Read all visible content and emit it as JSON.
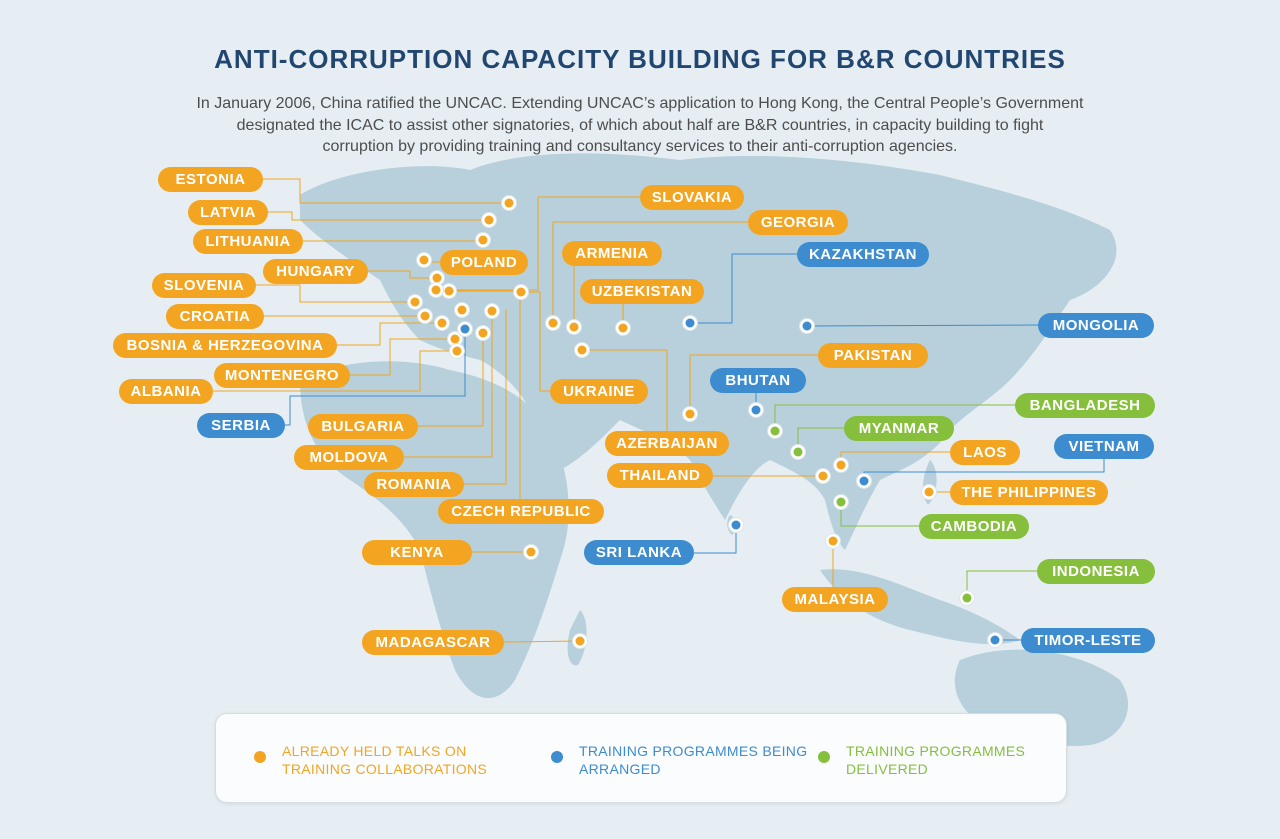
{
  "title": "ANTI-CORRUPTION CAPACITY BUILDING FOR B&R COUNTRIES",
  "intro_lines": [
    "In January 2006, China ratified the UNCAC. Extending UNCAC’s application to Hong Kong, the Central People’s Government",
    "designated the ICAC to assist other signatories, of which about half are B&R countries, in capacity building to fight",
    "corruption by providing training and consultancy services to their anti-corruption agencies."
  ],
  "colors": {
    "talks_held": "#f3a521",
    "being_arranged": "#3d8ccf",
    "delivered": "#86bf3c",
    "title": "#21466f",
    "land": "#b7d0dc",
    "sea": "#e6eef3"
  },
  "legend": [
    {
      "status": "talks_held",
      "text": "ALREADY HELD TALKS ON TRAINING COLLABORATIONS"
    },
    {
      "status": "being_arranged",
      "text": "TRAINING PROGRAMMES BEING ARRANGED"
    },
    {
      "status": "delivered",
      "text": "TRAINING PROGRAMMES DELIVERED"
    }
  ],
  "countries": [
    {
      "name": "ESTONIA",
      "status": "talks_held"
    },
    {
      "name": "LATVIA",
      "status": "talks_held"
    },
    {
      "name": "LITHUANIA",
      "status": "talks_held"
    },
    {
      "name": "POLAND",
      "status": "talks_held"
    },
    {
      "name": "HUNGARY",
      "status": "talks_held"
    },
    {
      "name": "SLOVENIA",
      "status": "talks_held"
    },
    {
      "name": "CROATIA",
      "status": "talks_held"
    },
    {
      "name": "BOSNIA & HERZEGOVINA",
      "status": "talks_held"
    },
    {
      "name": "MONTENEGRO",
      "status": "talks_held"
    },
    {
      "name": "ALBANIA",
      "status": "talks_held"
    },
    {
      "name": "SERBIA",
      "status": "being_arranged"
    },
    {
      "name": "BULGARIA",
      "status": "talks_held"
    },
    {
      "name": "MOLDOVA",
      "status": "talks_held"
    },
    {
      "name": "ROMANIA",
      "status": "talks_held"
    },
    {
      "name": "CZECH REPUBLIC",
      "status": "talks_held"
    },
    {
      "name": "SLOVAKIA",
      "status": "talks_held"
    },
    {
      "name": "GEORGIA",
      "status": "talks_held"
    },
    {
      "name": "ARMENIA",
      "status": "talks_held"
    },
    {
      "name": "UZBEKISTAN",
      "status": "talks_held"
    },
    {
      "name": "UKRAINE",
      "status": "talks_held"
    },
    {
      "name": "AZERBAIJAN",
      "status": "talks_held"
    },
    {
      "name": "KAZAKHSTAN",
      "status": "being_arranged"
    },
    {
      "name": "MONGOLIA",
      "status": "being_arranged"
    },
    {
      "name": "PAKISTAN",
      "status": "talks_held"
    },
    {
      "name": "BHUTAN",
      "status": "being_arranged"
    },
    {
      "name": "BANGLADESH",
      "status": "delivered"
    },
    {
      "name": "MYANMAR",
      "status": "delivered"
    },
    {
      "name": "LAOS",
      "status": "talks_held"
    },
    {
      "name": "VIETNAM",
      "status": "being_arranged"
    },
    {
      "name": "THAILAND",
      "status": "talks_held"
    },
    {
      "name": "THE PHILIPPINES",
      "status": "talks_held"
    },
    {
      "name": "CAMBODIA",
      "status": "delivered"
    },
    {
      "name": "KENYA",
      "status": "talks_held"
    },
    {
      "name": "SRI LANKA",
      "status": "being_arranged"
    },
    {
      "name": "MALAYSIA",
      "status": "talks_held"
    },
    {
      "name": "INDONESIA",
      "status": "delivered"
    },
    {
      "name": "MADAGASCAR",
      "status": "talks_held"
    },
    {
      "name": "TIMOR-LESTE",
      "status": "being_arranged"
    }
  ]
}
